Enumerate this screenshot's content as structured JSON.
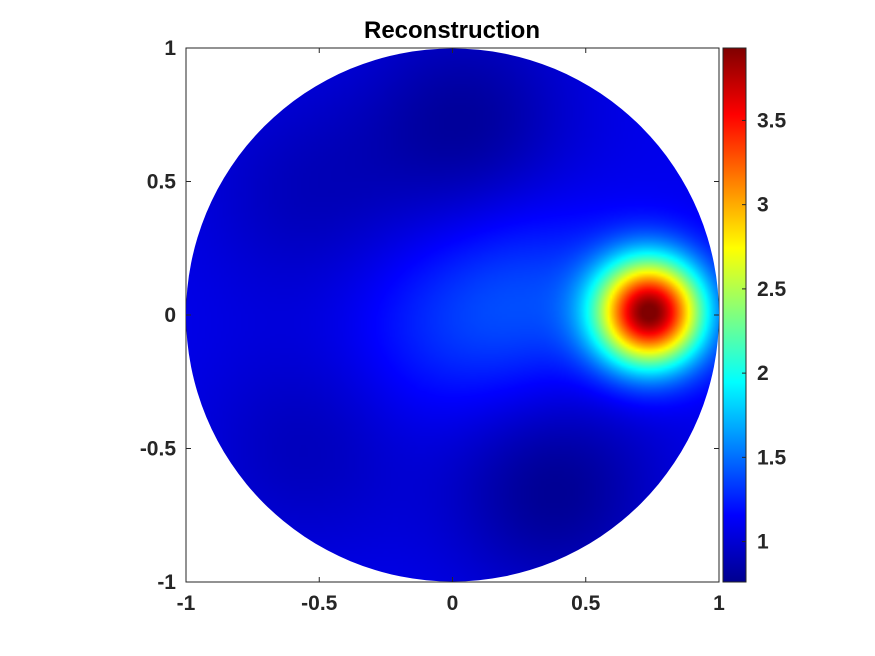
{
  "chart_data": {
    "type": "heatmap",
    "title": "Reconstruction",
    "xlabel": "",
    "ylabel": "",
    "xlim": [
      -1,
      1
    ],
    "ylim": [
      -1,
      1
    ],
    "x_ticks": [
      "-1",
      "-0.5",
      "0",
      "0.5",
      "1"
    ],
    "y_ticks": [
      "1",
      "0.5",
      "0",
      "-0.5",
      "-1"
    ],
    "domain_shape": "unit disk",
    "colormap": "jet",
    "grid": false,
    "colorbar": {
      "location": "right",
      "limits": [
        0.76,
        3.93
      ],
      "ticks": [
        "1",
        "1.5",
        "2",
        "2.5",
        "3",
        "3.5"
      ]
    },
    "field": {
      "background_level": 1.1,
      "peak": {
        "x": 0.74,
        "y": 0.01,
        "value": 3.93
      },
      "low_regions": [
        {
          "x": 0.05,
          "y": 0.72,
          "value": 0.85
        },
        {
          "x": 0.38,
          "y": -0.65,
          "value": 0.82
        },
        {
          "x": -0.55,
          "y": 0.45,
          "value": 0.95
        },
        {
          "x": -0.55,
          "y": -0.5,
          "value": 0.95
        }
      ],
      "elevated_regions": [
        {
          "x": -0.05,
          "y": -0.05,
          "value": 1.25
        },
        {
          "x": 0.3,
          "y": 0.05,
          "value": 1.35
        }
      ]
    }
  }
}
